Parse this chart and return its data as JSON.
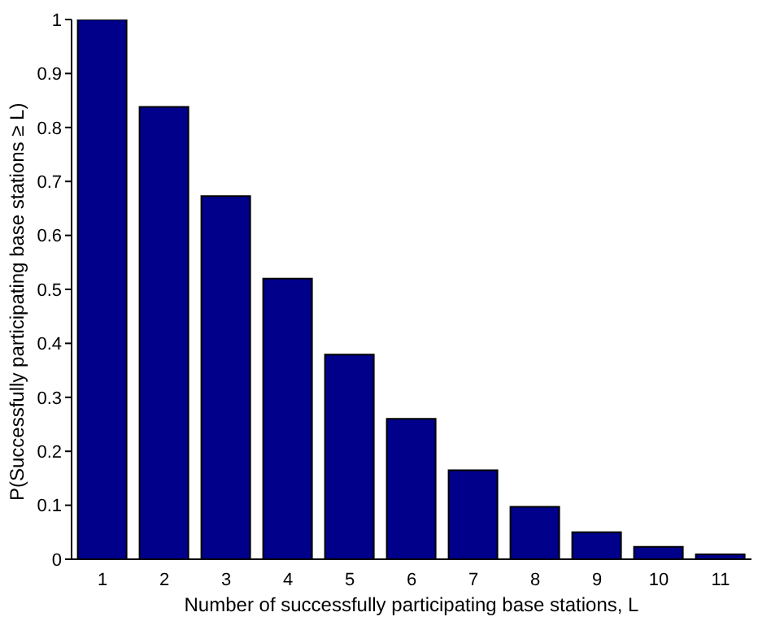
{
  "chart_data": {
    "type": "bar",
    "xlabel": "Number of successfully participating base stations, L",
    "ylabel": "P(Successfully participating base stations ≥ L)",
    "categories": [
      "1",
      "2",
      "3",
      "4",
      "5",
      "6",
      "7",
      "8",
      "9",
      "10",
      "11"
    ],
    "values": [
      1,
      0.838,
      0.673,
      0.52,
      0.379,
      0.26,
      0.165,
      0.097,
      0.05,
      0.023,
      0.009
    ],
    "color": "#00008b",
    "ylim": [
      0,
      1
    ],
    "yticks": [
      0,
      0.1,
      0.2,
      0.3,
      0.4,
      0.5,
      0.6,
      0.7,
      0.8,
      0.9,
      1
    ],
    "grid": false,
    "legend": false
  }
}
